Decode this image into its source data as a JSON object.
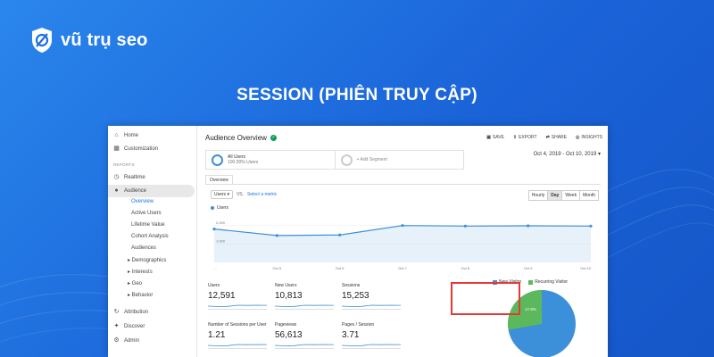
{
  "brand": {
    "name": "vũ trụ seo"
  },
  "headline": "SESSION (PHIÊN TRUY CẬP)",
  "sidebar": {
    "items": [
      {
        "label": "Home",
        "icon": "home-icon"
      },
      {
        "label": "Customization",
        "icon": "grid-icon"
      }
    ],
    "section_label": "REPORTS",
    "reports": [
      {
        "label": "Realtime",
        "icon": "clock-icon"
      },
      {
        "label": "Audience",
        "icon": "person-icon"
      }
    ],
    "audience_sub": [
      {
        "label": "Overview",
        "selected": true
      },
      {
        "label": "Active Users"
      },
      {
        "label": "Lifetime Value"
      },
      {
        "label": "Cohort Analysis"
      },
      {
        "label": "Audiences"
      },
      {
        "label": "▸ Demographics"
      },
      {
        "label": "▸ Interests"
      },
      {
        "label": "▸ Geo"
      },
      {
        "label": "▸ Behavior"
      }
    ],
    "bottom": [
      {
        "label": "Attribution",
        "icon": "attribution-icon"
      },
      {
        "label": "Discover",
        "icon": "bulb-icon"
      },
      {
        "label": "Admin",
        "icon": "gear-icon"
      }
    ]
  },
  "main": {
    "title": "Audience Overview",
    "actions": {
      "save": "SAVE",
      "export": "EXPORT",
      "share": "SHARE",
      "insights": "INSIGHTS"
    },
    "segments": {
      "all_users": "All Users",
      "all_users_sub": "100.00% Users",
      "add": "+ Add Segment"
    },
    "date_range": "Oct 4, 2019 - Oct 10, 2019",
    "tab": "Overview",
    "metric_select": "Users",
    "vs": "VS.",
    "select_metric": "Select a metric",
    "granularity": [
      "Hourly",
      "Day",
      "Week",
      "Month"
    ],
    "granularity_selected": "Day",
    "legend": "Users",
    "stats": [
      {
        "label": "Users",
        "value": "12,591"
      },
      {
        "label": "New Users",
        "value": "10,813"
      },
      {
        "label": "Sessions",
        "value": "15,253"
      },
      {
        "label": "Number of Sessions per User",
        "value": "1.21"
      },
      {
        "label": "Pageviews",
        "value": "56,613"
      },
      {
        "label": "Pages / Session",
        "value": "3.71"
      }
    ],
    "pie": {
      "legend": [
        "New Visitor",
        "Recurring Visitor"
      ],
      "colors": [
        "#3c8fd9",
        "#5cb85c"
      ],
      "slice_label": "17.9%"
    }
  },
  "chart_data": {
    "type": "line",
    "x": [
      "Oct 4",
      "Oct 5",
      "Oct 6",
      "Oct 7",
      "Oct 8",
      "Oct 9",
      "Oct 10"
    ],
    "series": [
      {
        "name": "Users",
        "values": [
          1800,
          1450,
          1480,
          1990,
          1960,
          1975,
          1960
        ]
      }
    ],
    "y_ticks": [
      "2,000",
      "1,000"
    ],
    "ylim": [
      0,
      2600
    ],
    "x_tick_labels": [
      "...",
      "Oct 5",
      "Oct 6",
      "Oct 7",
      "Oct 8",
      "Oct 9",
      "Oct 10"
    ],
    "color": "#3c8fd9"
  }
}
